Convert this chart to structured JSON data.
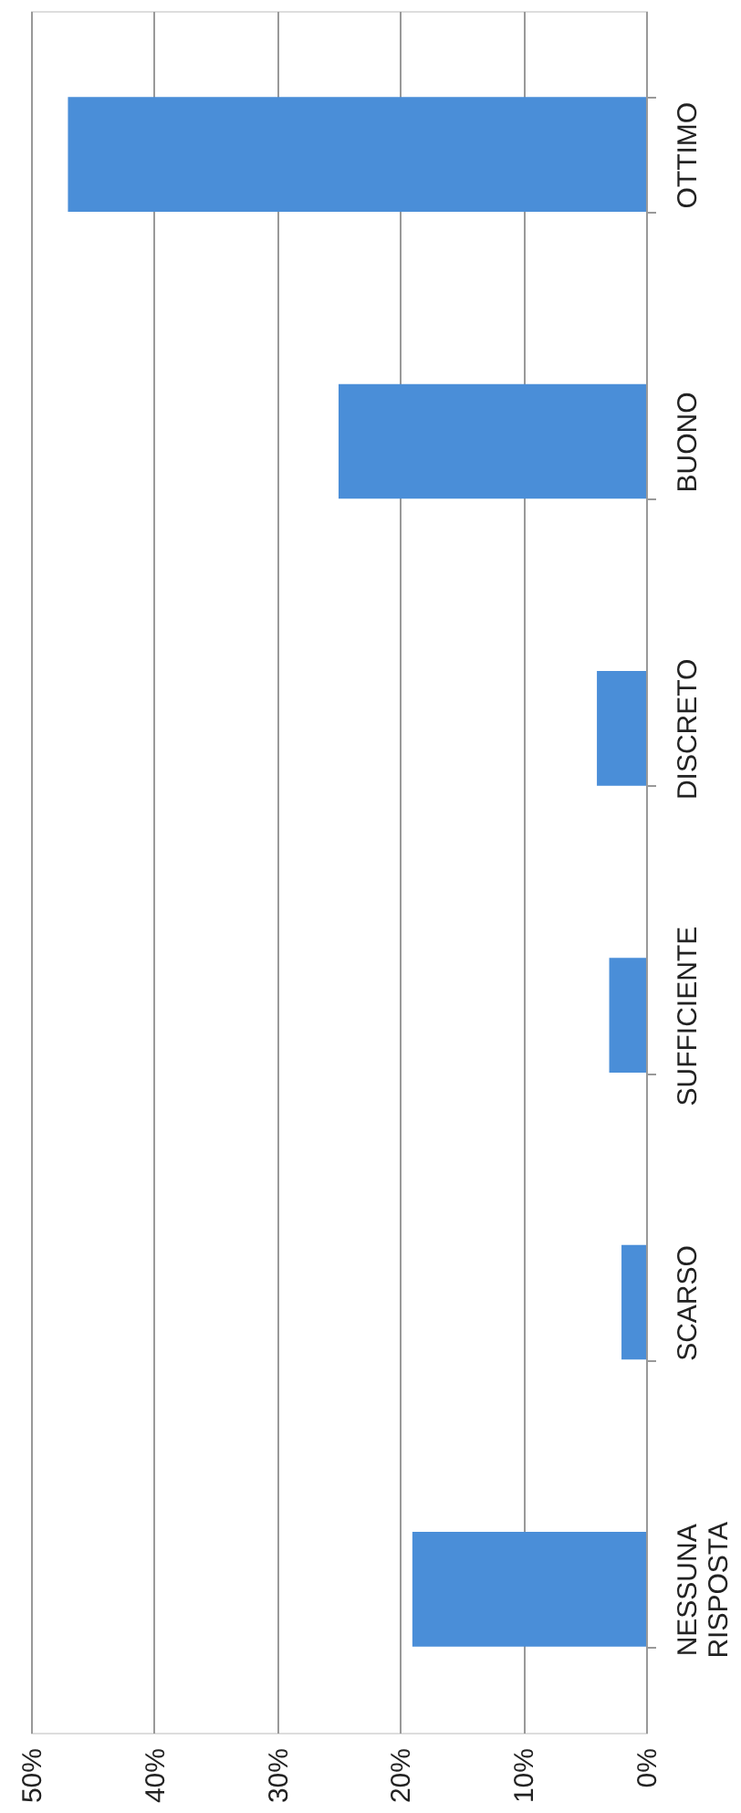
{
  "chart_data": {
    "type": "bar",
    "orientation": "horizontal",
    "categories": [
      "OTTIMO",
      "BUONO",
      "DISCRETO",
      "SUFFICIENTE",
      "SCARSO",
      "NESSUNA\nRISPOSTA"
    ],
    "values": [
      47,
      25,
      4,
      3,
      2,
      19
    ],
    "color": "#4a8ed8",
    "xlim": [
      50,
      0
    ],
    "xticks": [
      {
        "value": 50,
        "label": "50%"
      },
      {
        "value": 40,
        "label": "40%"
      },
      {
        "value": 30,
        "label": "30%"
      },
      {
        "value": 20,
        "label": "20%"
      },
      {
        "value": 10,
        "label": "10%"
      },
      {
        "value": 0,
        "label": "0%"
      }
    ],
    "grid": "x"
  }
}
